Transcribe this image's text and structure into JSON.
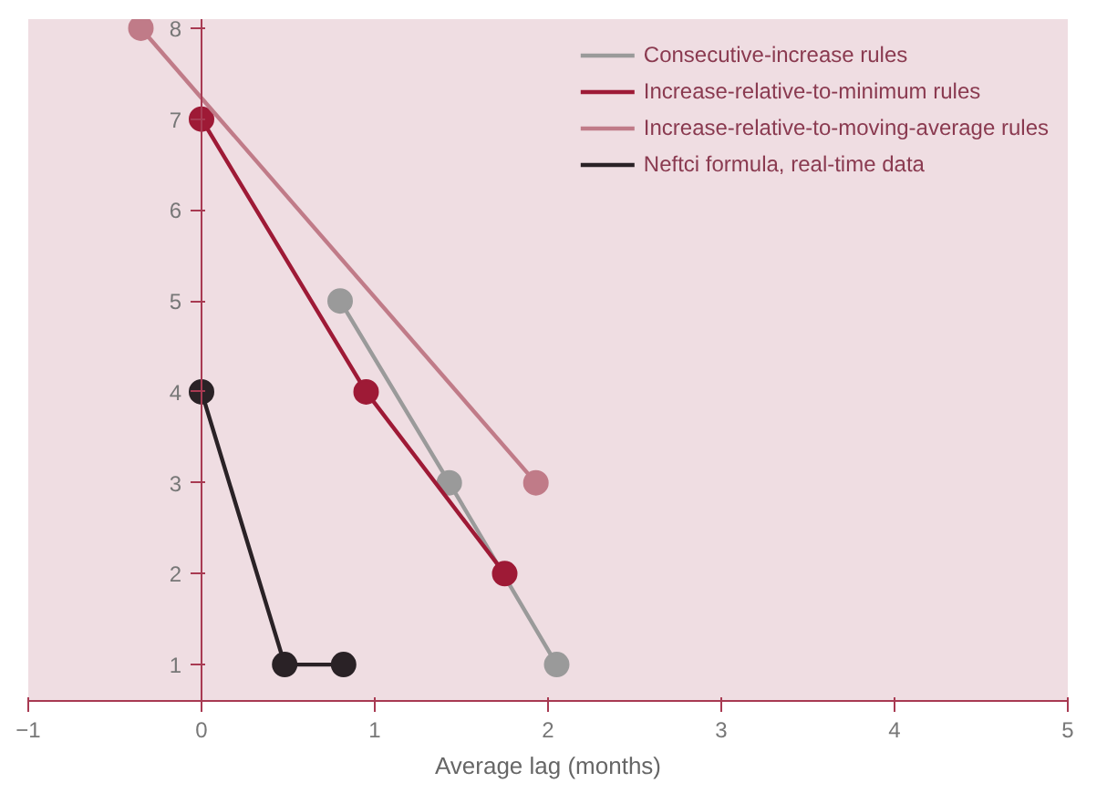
{
  "chart_data": {
    "type": "line",
    "xlabel": "Average lag (months)",
    "xlim": [
      -1,
      5
    ],
    "xticks": [
      -1,
      0,
      1,
      2,
      3,
      4,
      5
    ],
    "ylim": [
      0.6,
      8.1
    ],
    "yticks": [
      1,
      2,
      3,
      4,
      5,
      6,
      7,
      8
    ],
    "marker": "circle",
    "legend": "top right",
    "grid": false,
    "series": [
      {
        "name": "Consecutive-increase rules",
        "color": "#9a9a9a",
        "x": [
          0.8,
          1.43,
          2.05
        ],
        "values": [
          5,
          3,
          1
        ]
      },
      {
        "name": "Increase-relative-to-minimum rules",
        "color": "#9e1a36",
        "x": [
          0,
          0.95,
          1.75
        ],
        "values": [
          7,
          4,
          2
        ]
      },
      {
        "name": "Increase-relative-to-moving-average rules",
        "color": "#c07b88",
        "x": [
          -0.35,
          1.93
        ],
        "values": [
          8,
          3
        ]
      },
      {
        "name": "Neftci formula, real-time data",
        "color": "#2a2226",
        "x": [
          0,
          0.48,
          0.82
        ],
        "values": [
          4,
          1,
          1
        ]
      }
    ]
  }
}
